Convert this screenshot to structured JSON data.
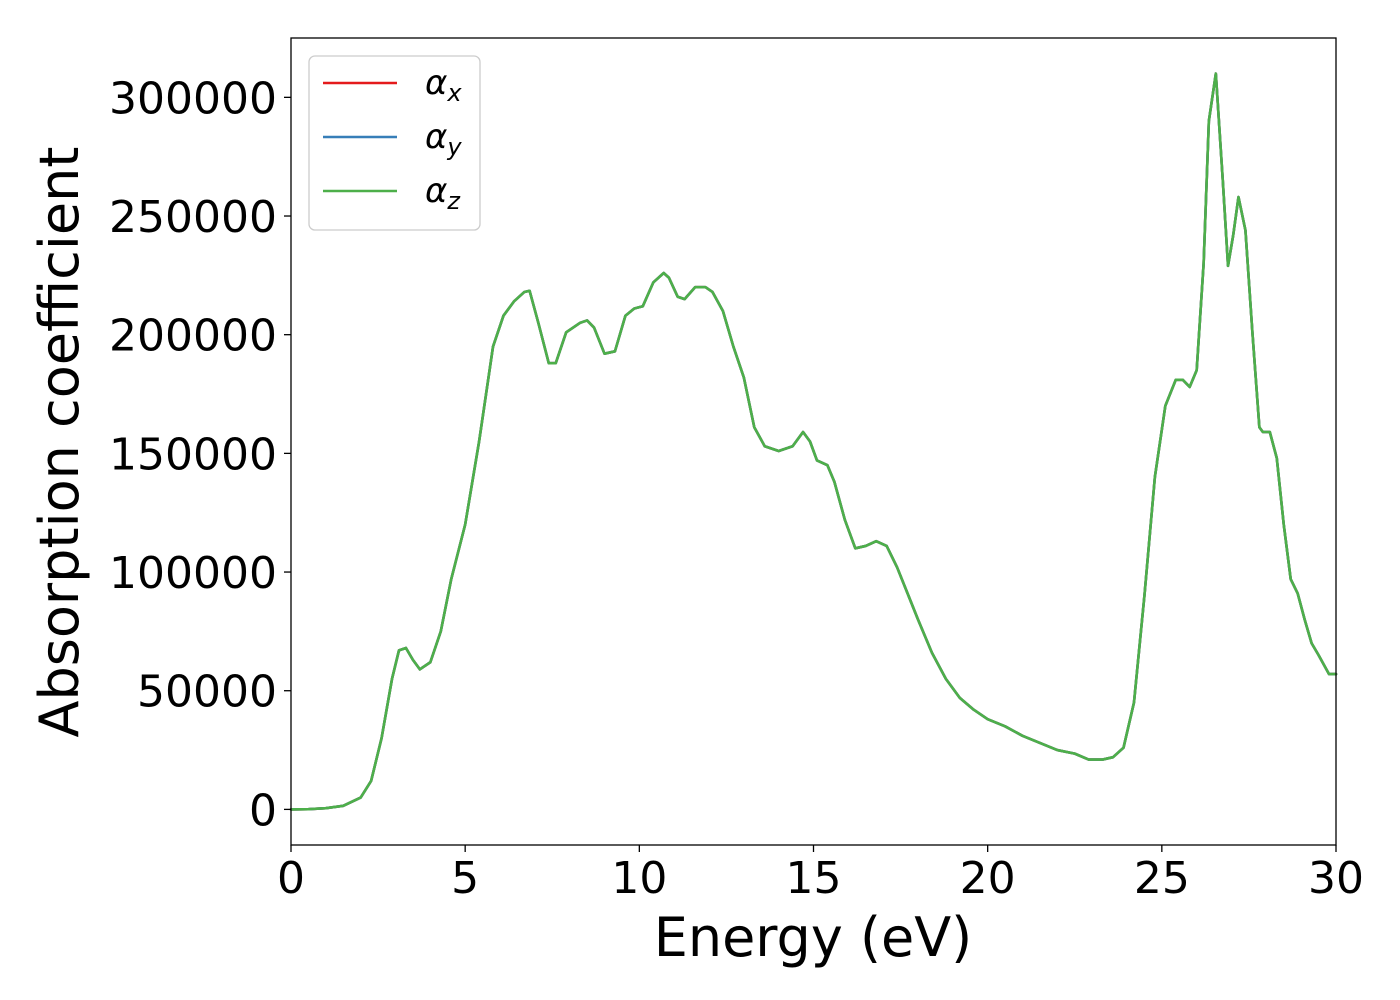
{
  "chart_data": {
    "type": "line",
    "xlabel": "Energy (eV)",
    "ylabel": "Absorption coefficient",
    "xlim": [
      0,
      30
    ],
    "ylim": [
      -15000,
      325000
    ],
    "x_ticks": [
      0,
      5,
      10,
      15,
      20,
      25,
      30
    ],
    "y_ticks": [
      0,
      50000,
      100000,
      150000,
      200000,
      250000,
      300000
    ],
    "grid": false,
    "legend_position": "top-left",
    "x": [
      0,
      0.5,
      1,
      1.5,
      2,
      2.3,
      2.6,
      2.9,
      3.1,
      3.3,
      3.5,
      3.7,
      4,
      4.3,
      4.6,
      5,
      5.4,
      5.8,
      6.1,
      6.4,
      6.7,
      6.85,
      7.1,
      7.4,
      7.6,
      7.9,
      8.1,
      8.3,
      8.5,
      8.7,
      9,
      9.3,
      9.6,
      9.85,
      10.1,
      10.4,
      10.7,
      10.85,
      11.1,
      11.3,
      11.6,
      11.9,
      12.1,
      12.4,
      12.7,
      13,
      13.3,
      13.6,
      14,
      14.4,
      14.7,
      14.9,
      15.1,
      15.4,
      15.6,
      15.9,
      16.2,
      16.5,
      16.8,
      17.1,
      17.4,
      17.7,
      18,
      18.4,
      18.8,
      19.2,
      19.6,
      20,
      20.5,
      21,
      21.5,
      22,
      22.5,
      22.9,
      23.3,
      23.6,
      23.9,
      24.2,
      24.5,
      24.8,
      25.1,
      25.4,
      25.6,
      25.8,
      26,
      26.2,
      26.35,
      26.55,
      26.75,
      26.9,
      27.05,
      27.2,
      27.4,
      27.6,
      27.8,
      27.9,
      28.1,
      28.3,
      28.5,
      28.7,
      28.9,
      29.1,
      29.3,
      29.5,
      29.8,
      30
    ],
    "series": [
      {
        "name": "αx",
        "color": "#e41a1c",
        "y": [
          0,
          100,
          500,
          1500,
          5000,
          12000,
          30000,
          55000,
          67000,
          68000,
          63000,
          59000,
          62000,
          75000,
          97000,
          120000,
          155000,
          195000,
          208000,
          214000,
          218000,
          218500,
          205000,
          188000,
          188000,
          201000,
          203000,
          205000,
          206000,
          203000,
          192000,
          193000,
          208000,
          211000,
          212000,
          222000,
          226000,
          224000,
          216000,
          215000,
          220000,
          220000,
          218000,
          210000,
          195000,
          182000,
          161000,
          153000,
          151000,
          153000,
          159000,
          155000,
          147000,
          145000,
          138000,
          122000,
          110000,
          111000,
          113000,
          111000,
          102000,
          91000,
          80000,
          66000,
          55000,
          47000,
          42000,
          38000,
          35000,
          31000,
          28000,
          25000,
          23500,
          21000,
          21000,
          22000,
          26000,
          45000,
          90000,
          140000,
          170000,
          181000,
          181000,
          178000,
          185000,
          230000,
          290000,
          310000,
          265000,
          229000,
          242000,
          258000,
          244000,
          201000,
          161000,
          159000,
          159000,
          148000,
          120000,
          97000,
          91000,
          80000,
          70000,
          65000,
          57000,
          57000
        ]
      },
      {
        "name": "αy",
        "color": "#377eb8",
        "y": [
          0,
          100,
          500,
          1500,
          5000,
          12000,
          30000,
          55000,
          67000,
          68000,
          63000,
          59000,
          62000,
          75000,
          97000,
          120000,
          155000,
          195000,
          208000,
          214000,
          218000,
          218500,
          205000,
          188000,
          188000,
          201000,
          203000,
          205000,
          206000,
          203000,
          192000,
          193000,
          208000,
          211000,
          212000,
          222000,
          226000,
          224000,
          216000,
          215000,
          220000,
          220000,
          218000,
          210000,
          195000,
          182000,
          161000,
          153000,
          151000,
          153000,
          159000,
          155000,
          147000,
          145000,
          138000,
          122000,
          110000,
          111000,
          113000,
          111000,
          102000,
          91000,
          80000,
          66000,
          55000,
          47000,
          42000,
          38000,
          35000,
          31000,
          28000,
          25000,
          23500,
          21000,
          21000,
          22000,
          26000,
          45000,
          90000,
          140000,
          170000,
          181000,
          181000,
          178000,
          185000,
          230000,
          290000,
          310000,
          265000,
          229000,
          242000,
          258000,
          244000,
          201000,
          161000,
          159000,
          159000,
          148000,
          120000,
          97000,
          91000,
          80000,
          70000,
          65000,
          57000,
          57000
        ]
      },
      {
        "name": "αz",
        "color": "#4daf4a",
        "y": [
          0,
          100,
          500,
          1500,
          5000,
          12000,
          30000,
          55000,
          67000,
          68000,
          63000,
          59000,
          62000,
          75000,
          97000,
          120000,
          155000,
          195000,
          208000,
          214000,
          218000,
          218500,
          205000,
          188000,
          188000,
          201000,
          203000,
          205000,
          206000,
          203000,
          192000,
          193000,
          208000,
          211000,
          212000,
          222000,
          226000,
          224000,
          216000,
          215000,
          220000,
          220000,
          218000,
          210000,
          195000,
          182000,
          161000,
          153000,
          151000,
          153000,
          159000,
          155000,
          147000,
          145000,
          138000,
          122000,
          110000,
          111000,
          113000,
          111000,
          102000,
          91000,
          80000,
          66000,
          55000,
          47000,
          42000,
          38000,
          35000,
          31000,
          28000,
          25000,
          23500,
          21000,
          21000,
          22000,
          26000,
          45000,
          90000,
          140000,
          170000,
          181000,
          181000,
          178000,
          185000,
          230000,
          290000,
          310000,
          265000,
          229000,
          242000,
          258000,
          244000,
          201000,
          161000,
          159000,
          159000,
          148000,
          120000,
          97000,
          91000,
          80000,
          70000,
          65000,
          57000,
          57000
        ]
      }
    ],
    "legend": [
      {
        "symbol": "α",
        "sub": "x",
        "color": "#e41a1c"
      },
      {
        "symbol": "α",
        "sub": "y",
        "color": "#377eb8"
      },
      {
        "symbol": "α",
        "sub": "z",
        "color": "#4daf4a"
      }
    ]
  }
}
